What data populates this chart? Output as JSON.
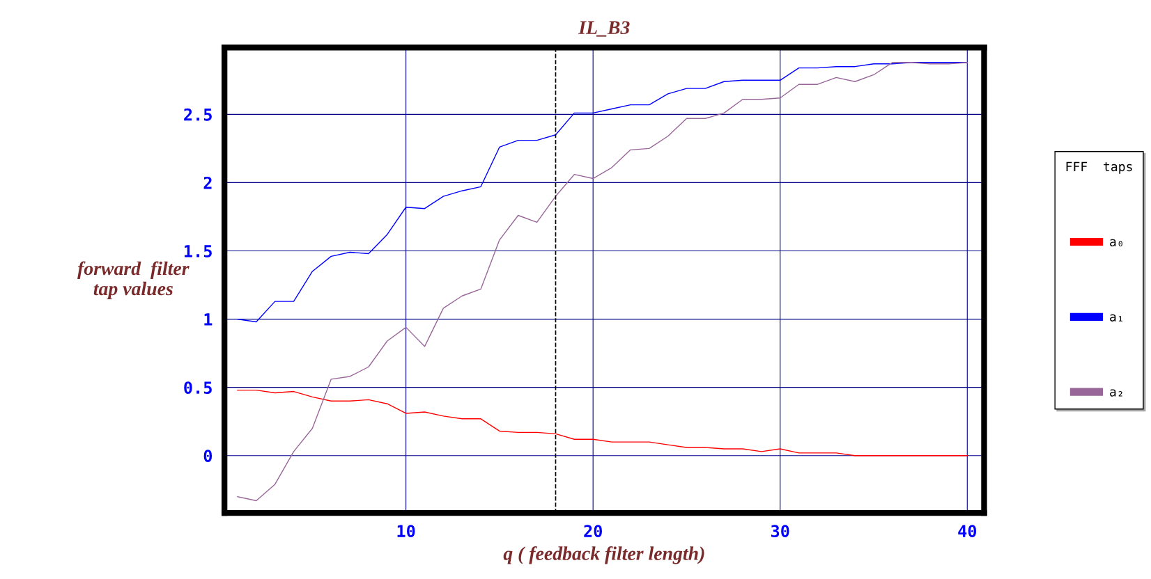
{
  "chart_data": {
    "type": "line",
    "title": "IL_B3",
    "xlabel": "q ( feedback filter length)",
    "ylabel": "forward  filter\ntap values",
    "legend_title": "FFF  taps",
    "legend": "right",
    "grid": true,
    "x": [
      1,
      2,
      3,
      4,
      5,
      6,
      7,
      8,
      9,
      10,
      11,
      12,
      13,
      14,
      15,
      16,
      17,
      18,
      19,
      20,
      21,
      22,
      23,
      24,
      25,
      26,
      27,
      28,
      29,
      30,
      31,
      32,
      33,
      34,
      35,
      36,
      37,
      38,
      39,
      40
    ],
    "series": [
      {
        "name": "a₀",
        "color": "#ff0000",
        "values": [
          0.48,
          0.48,
          0.46,
          0.47,
          0.43,
          0.4,
          0.4,
          0.41,
          0.38,
          0.31,
          0.32,
          0.29,
          0.27,
          0.27,
          0.18,
          0.17,
          0.17,
          0.16,
          0.12,
          0.12,
          0.1,
          0.1,
          0.1,
          0.08,
          0.06,
          0.06,
          0.05,
          0.05,
          0.03,
          0.05,
          0.02,
          0.02,
          0.02,
          0.0,
          0.0,
          0.0,
          0.0,
          0.0,
          0.0,
          0.0
        ]
      },
      {
        "name": "a₁",
        "color": "#0000ff",
        "values": [
          1.0,
          0.98,
          1.13,
          1.13,
          1.35,
          1.46,
          1.49,
          1.48,
          1.62,
          1.82,
          1.81,
          1.9,
          1.94,
          1.97,
          2.26,
          2.31,
          2.31,
          2.35,
          2.51,
          2.51,
          2.54,
          2.57,
          2.57,
          2.65,
          2.69,
          2.69,
          2.74,
          2.75,
          2.75,
          2.75,
          2.84,
          2.84,
          2.85,
          2.85,
          2.87,
          2.87,
          2.88,
          2.88,
          2.88,
          2.88
        ]
      },
      {
        "name": "a₂",
        "color": "#996699",
        "values": [
          -0.3,
          -0.33,
          -0.21,
          0.03,
          0.2,
          0.56,
          0.58,
          0.65,
          0.84,
          0.94,
          0.8,
          1.08,
          1.17,
          1.22,
          1.58,
          1.76,
          1.71,
          1.9,
          2.06,
          2.03,
          2.11,
          2.24,
          2.25,
          2.34,
          2.47,
          2.47,
          2.51,
          2.61,
          2.61,
          2.62,
          2.72,
          2.72,
          2.77,
          2.74,
          2.79,
          2.88,
          2.88,
          2.87,
          2.87,
          2.88
        ]
      }
    ],
    "ref_lines": [
      {
        "axis": "x",
        "value": 18,
        "color": "#000000",
        "line_style": "dashed"
      }
    ],
    "xlim": [
      0.3,
      40.9
    ],
    "ylim": [
      -0.42,
      2.99
    ],
    "xticks": [
      10,
      20,
      30,
      40
    ],
    "yticks": [
      0,
      0.5,
      1,
      1.5,
      2,
      2.5
    ]
  }
}
